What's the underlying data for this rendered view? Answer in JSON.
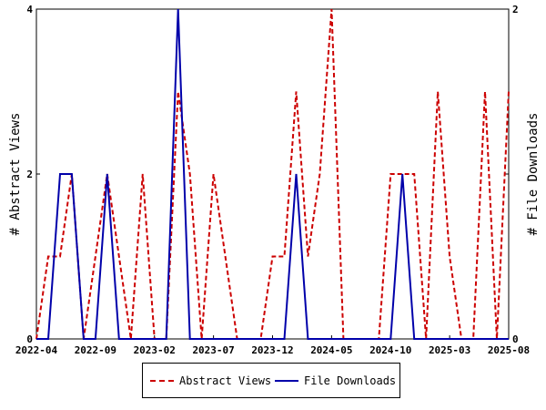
{
  "chart_data": {
    "type": "line",
    "x_ticks": [
      "2022-04",
      "2022-09",
      "2023-02",
      "2023-07",
      "2023-12",
      "2024-05",
      "2024-10",
      "2025-03",
      "2025-08"
    ],
    "ylabel_left": "# Abstract Views",
    "ylabel_right": "# File Downloads",
    "y_left_ticks": [
      "0",
      "2",
      "4"
    ],
    "y_right_ticks": [
      "0",
      "1",
      "2"
    ],
    "ylim_left": [
      0,
      4
    ],
    "ylim_right": [
      0,
      2
    ],
    "legend_position": "bottom-center",
    "grid": false,
    "series": [
      {
        "name": "Abstract Views",
        "axis": "left",
        "color": "#cc0000",
        "style": "dashed",
        "points": [
          [
            "2022-04",
            0
          ],
          [
            "2022-05",
            1
          ],
          [
            "2022-06",
            1
          ],
          [
            "2022-07",
            2
          ],
          [
            "2022-08",
            0
          ],
          [
            "2022-09",
            1
          ],
          [
            "2022-10",
            2
          ],
          [
            "2022-11",
            1
          ],
          [
            "2022-12",
            0
          ],
          [
            "2023-01",
            2
          ],
          [
            "2023-02",
            0
          ],
          [
            "2023-03",
            0
          ],
          [
            "2023-04",
            3
          ],
          [
            "2023-05",
            2
          ],
          [
            "2023-06",
            0
          ],
          [
            "2023-07",
            2
          ],
          [
            "2023-08",
            1
          ],
          [
            "2023-09",
            0
          ],
          [
            "2023-10",
            0
          ],
          [
            "2023-11",
            0
          ],
          [
            "2023-12",
            1
          ],
          [
            "2024-01",
            1
          ],
          [
            "2024-02",
            3
          ],
          [
            "2024-03",
            1
          ],
          [
            "2024-04",
            2
          ],
          [
            "2024-05",
            4
          ],
          [
            "2024-06",
            0
          ],
          [
            "2024-07",
            0
          ],
          [
            "2024-08",
            0
          ],
          [
            "2024-09",
            0
          ],
          [
            "2024-10",
            2
          ],
          [
            "2024-11",
            2
          ],
          [
            "2024-12",
            2
          ],
          [
            "2025-01",
            0
          ],
          [
            "2025-02",
            3
          ],
          [
            "2025-03",
            1
          ],
          [
            "2025-04",
            0
          ],
          [
            "2025-05",
            0
          ],
          [
            "2025-06",
            3
          ],
          [
            "2025-07",
            0
          ],
          [
            "2025-08",
            3
          ]
        ]
      },
      {
        "name": "File Downloads",
        "axis": "right",
        "color": "#0000aa",
        "style": "solid",
        "points": [
          [
            "2022-04",
            0
          ],
          [
            "2022-05",
            0
          ],
          [
            "2022-06",
            1
          ],
          [
            "2022-07",
            1
          ],
          [
            "2022-08",
            0
          ],
          [
            "2022-09",
            0
          ],
          [
            "2022-10",
            1
          ],
          [
            "2022-11",
            0
          ],
          [
            "2022-12",
            0
          ],
          [
            "2023-01",
            0
          ],
          [
            "2023-02",
            0
          ],
          [
            "2023-03",
            0
          ],
          [
            "2023-04",
            2
          ],
          [
            "2023-05",
            0
          ],
          [
            "2023-06",
            0
          ],
          [
            "2023-07",
            0
          ],
          [
            "2023-08",
            0
          ],
          [
            "2023-09",
            0
          ],
          [
            "2023-10",
            0
          ],
          [
            "2023-11",
            0
          ],
          [
            "2023-12",
            0
          ],
          [
            "2024-01",
            0
          ],
          [
            "2024-02",
            1
          ],
          [
            "2024-03",
            0
          ],
          [
            "2024-04",
            0
          ],
          [
            "2024-05",
            0
          ],
          [
            "2024-06",
            0
          ],
          [
            "2024-07",
            0
          ],
          [
            "2024-08",
            0
          ],
          [
            "2024-09",
            0
          ],
          [
            "2024-10",
            0
          ],
          [
            "2024-11",
            1
          ],
          [
            "2024-12",
            0
          ],
          [
            "2025-01",
            0
          ],
          [
            "2025-02",
            0
          ],
          [
            "2025-03",
            0
          ],
          [
            "2025-04",
            0
          ],
          [
            "2025-05",
            0
          ],
          [
            "2025-06",
            0
          ],
          [
            "2025-07",
            0
          ],
          [
            "2025-08",
            0
          ]
        ]
      }
    ]
  }
}
